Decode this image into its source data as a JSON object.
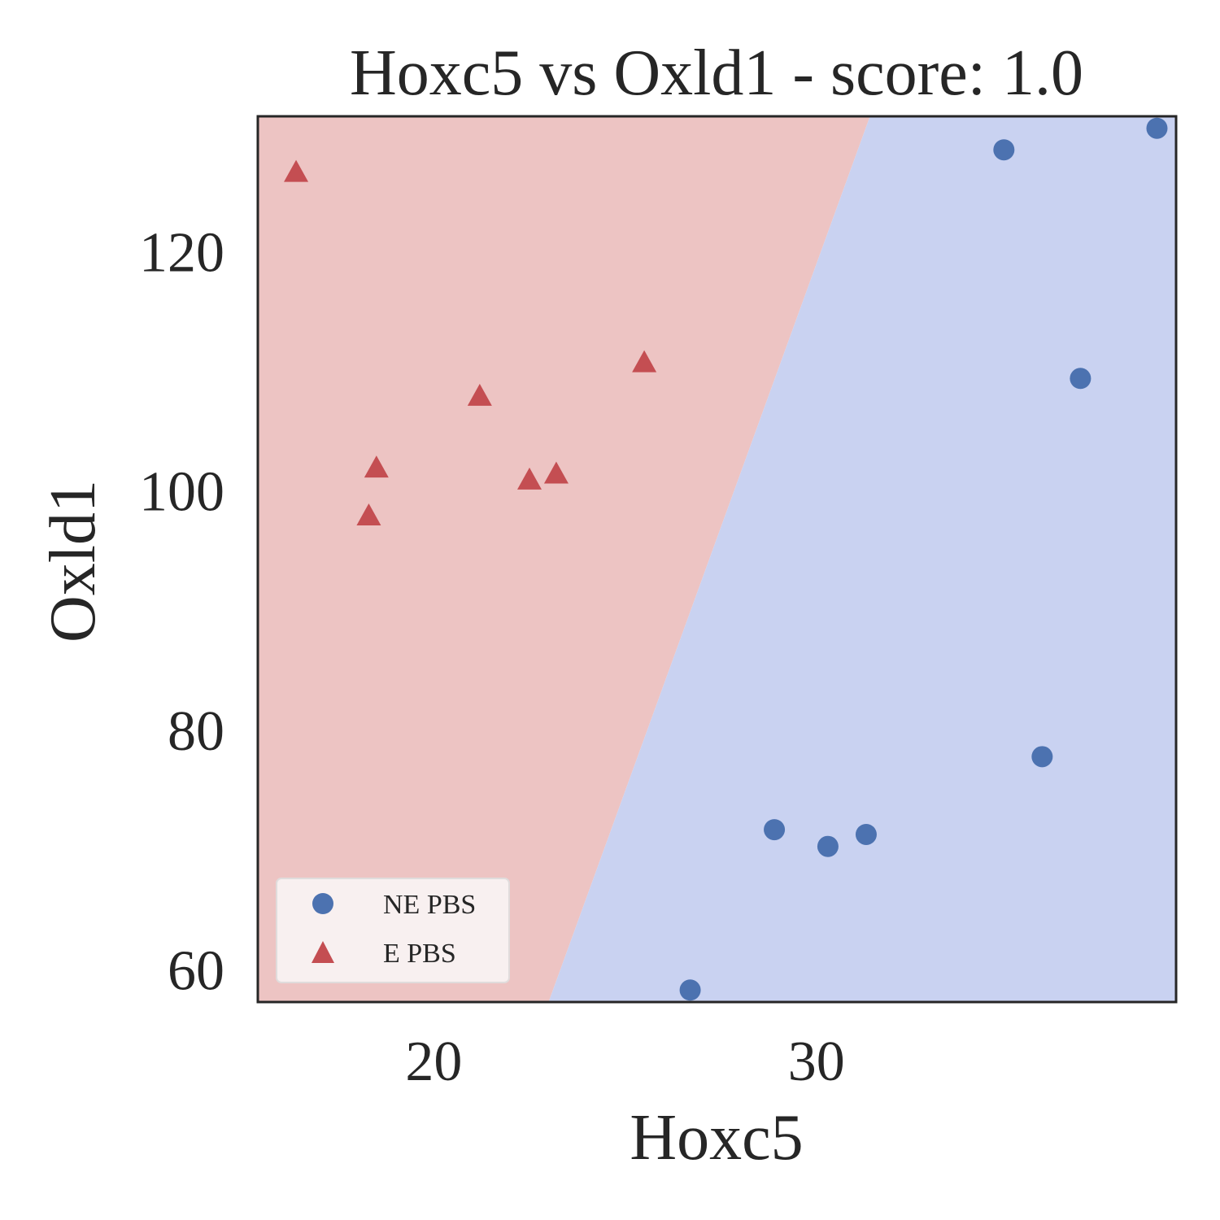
{
  "chart_data": {
    "type": "scatter",
    "title": "Hoxc5 vs Oxld1 - score: 1.0",
    "xlabel": "Hoxc5",
    "ylabel": "Oxld1",
    "xlim": [
      15.4,
      39.4
    ],
    "ylim": [
      57.3,
      131.3
    ],
    "xticks": [
      20,
      30
    ],
    "yticks": [
      60,
      80,
      100,
      120
    ],
    "grid": false,
    "legend_position": "lower-left",
    "decision_boundary": {
      "points": [
        [
          23.0,
          57.3
        ],
        [
          31.4,
          131.3
        ]
      ],
      "left_region_class": "E PBS",
      "right_region_class": "NE PBS"
    },
    "region_colors": {
      "E PBS": "#edc4c3",
      "NE PBS": "#c9d2f1"
    },
    "series": [
      {
        "name": "NE PBS",
        "marker": "circle",
        "color": "#4c72b0",
        "x": [
          26.7,
          28.9,
          30.3,
          31.3,
          34.9,
          35.9,
          36.9,
          38.9
        ],
        "y": [
          58.3,
          71.7,
          70.3,
          71.3,
          128.5,
          77.8,
          109.4,
          130.3
        ]
      },
      {
        "name": "E PBS",
        "marker": "triangle",
        "color": "#c44e52",
        "x": [
          16.4,
          18.3,
          18.5,
          21.2,
          22.5,
          23.2,
          25.5
        ],
        "y": [
          126.5,
          97.8,
          101.8,
          107.8,
          100.8,
          101.3,
          110.6
        ]
      }
    ]
  }
}
